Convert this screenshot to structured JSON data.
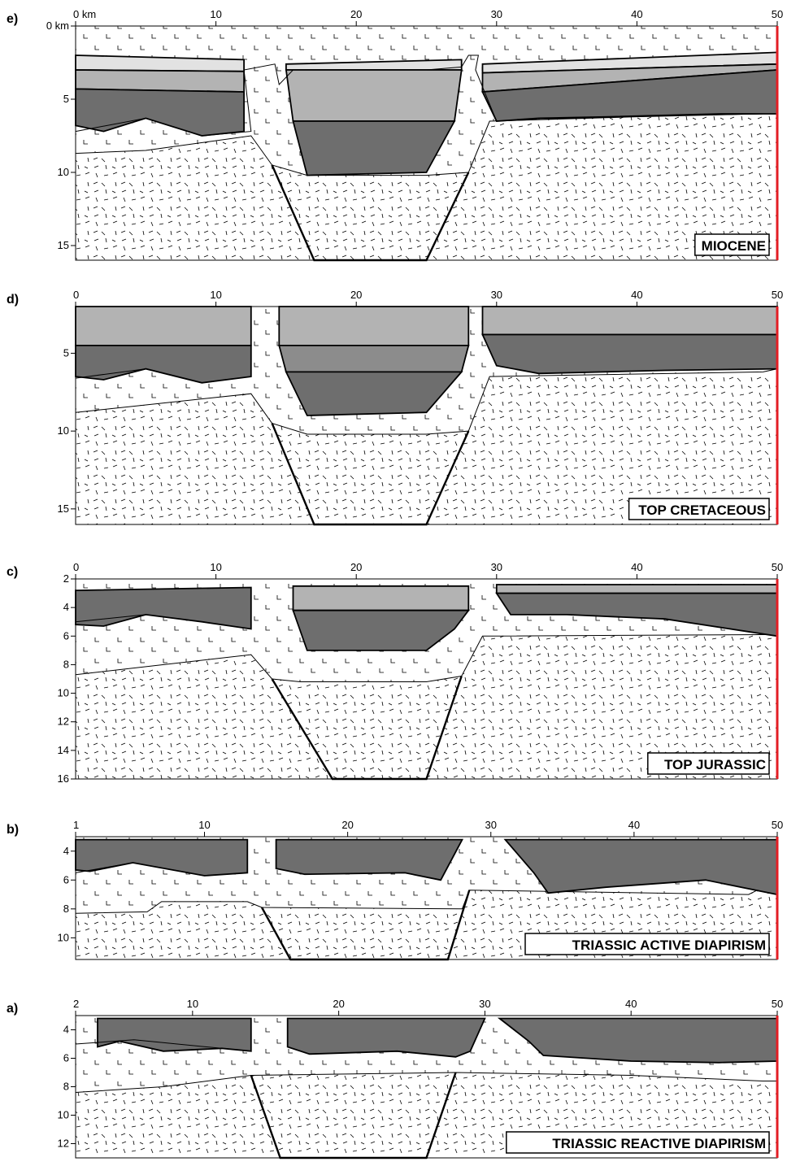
{
  "colors": {
    "salt": "#ffffff",
    "basement": "#ffffff",
    "unit_dark": "#6e6e6e",
    "unit_mid": "#8c8c8c",
    "unit_light": "#b3b3b3",
    "unit_lighter": "#cfcfcf",
    "unit_top": "#e2e2e2",
    "red_line": "#e31e24",
    "ink": "#000000"
  },
  "panels": [
    {
      "id": "e",
      "letter": "e)",
      "stage": "MIOCENE",
      "x_range": [
        0,
        50
      ],
      "y_range": [
        0,
        16
      ],
      "x_ticks": [
        {
          "v": 0,
          "t": "0 km"
        },
        {
          "v": 10,
          "t": "10"
        },
        {
          "v": 20,
          "t": "20"
        },
        {
          "v": 30,
          "t": "30"
        },
        {
          "v": 40,
          "t": "40"
        },
        {
          "v": 50,
          "t": "50"
        }
      ],
      "y_ticks": [
        {
          "v": 0,
          "t": "0 km"
        },
        {
          "v": 5,
          "t": "5"
        },
        {
          "v": 10,
          "t": "10"
        },
        {
          "v": 15,
          "t": "15"
        }
      ]
    },
    {
      "id": "d",
      "letter": "d)",
      "stage": "TOP CRETACEOUS",
      "x_range": [
        0,
        50
      ],
      "y_range": [
        2,
        16
      ],
      "x_ticks": [
        {
          "v": 0,
          "t": "0"
        },
        {
          "v": 10,
          "t": "10"
        },
        {
          "v": 20,
          "t": "20"
        },
        {
          "v": 30,
          "t": "30"
        },
        {
          "v": 40,
          "t": "40"
        },
        {
          "v": 50,
          "t": "50"
        }
      ],
      "y_ticks": [
        {
          "v": 5,
          "t": "5"
        },
        {
          "v": 10,
          "t": "10"
        },
        {
          "v": 15,
          "t": "15"
        }
      ]
    },
    {
      "id": "c",
      "letter": "c)",
      "stage": "TOP JURASSIC",
      "x_range": [
        0,
        50
      ],
      "y_range": [
        2,
        16
      ],
      "x_ticks": [
        {
          "v": 0,
          "t": "0"
        },
        {
          "v": 10,
          "t": "10"
        },
        {
          "v": 20,
          "t": "20"
        },
        {
          "v": 30,
          "t": "30"
        },
        {
          "v": 40,
          "t": "40"
        },
        {
          "v": 50,
          "t": "50"
        }
      ],
      "y_ticks": [
        {
          "v": 2,
          "t": "2"
        },
        {
          "v": 4,
          "t": "4"
        },
        {
          "v": 6,
          "t": "6"
        },
        {
          "v": 8,
          "t": "8"
        },
        {
          "v": 10,
          "t": "10"
        },
        {
          "v": 12,
          "t": "12"
        },
        {
          "v": 14,
          "t": "14"
        },
        {
          "v": 16,
          "t": "16"
        }
      ]
    },
    {
      "id": "b",
      "letter": "b)",
      "stage": "TRIASSIC ACTIVE DIAPIRISM",
      "x_range": [
        1,
        50
      ],
      "y_range": [
        3,
        11.5
      ],
      "x_ticks": [
        {
          "v": 1,
          "t": "1"
        },
        {
          "v": 10,
          "t": "10"
        },
        {
          "v": 20,
          "t": "20"
        },
        {
          "v": 30,
          "t": "30"
        },
        {
          "v": 40,
          "t": "40"
        },
        {
          "v": 50,
          "t": "50"
        }
      ],
      "y_ticks": [
        {
          "v": 4,
          "t": "4"
        },
        {
          "v": 6,
          "t": "6"
        },
        {
          "v": 8,
          "t": "8"
        },
        {
          "v": 10,
          "t": "10"
        }
      ]
    },
    {
      "id": "a",
      "letter": "a)",
      "stage": "TRIASSIC REACTIVE DIAPIRISM",
      "x_range": [
        2,
        50
      ],
      "y_range": [
        3,
        13
      ],
      "x_ticks": [
        {
          "v": 2,
          "t": "2"
        },
        {
          "v": 10,
          "t": "10"
        },
        {
          "v": 20,
          "t": "20"
        },
        {
          "v": 30,
          "t": "30"
        },
        {
          "v": 40,
          "t": "40"
        },
        {
          "v": 50,
          "t": "50"
        }
      ],
      "y_ticks": [
        {
          "v": 4,
          "t": "4"
        },
        {
          "v": 6,
          "t": "6"
        },
        {
          "v": 8,
          "t": "8"
        },
        {
          "v": 10,
          "t": "10"
        },
        {
          "v": 12,
          "t": "12"
        }
      ]
    }
  ]
}
